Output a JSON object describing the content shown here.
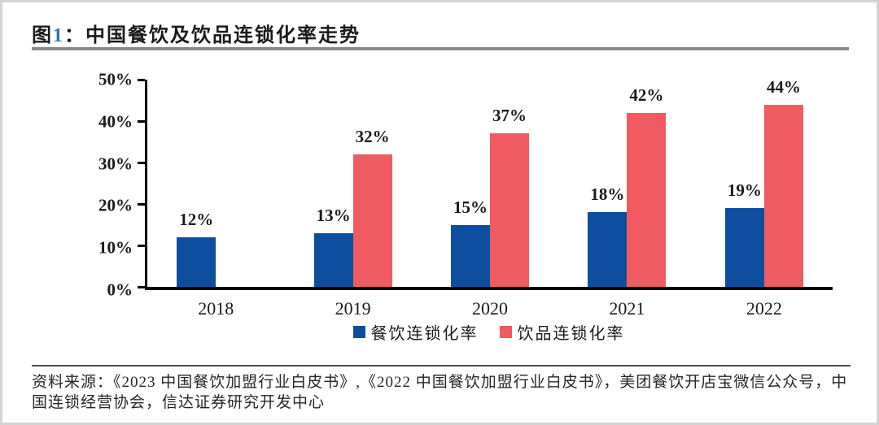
{
  "figure": {
    "fig_prefix": "图",
    "fig_number": "1",
    "fig_colon": "：",
    "title": "中国餐饮及饮品连锁化率走势"
  },
  "chart_data": {
    "type": "bar",
    "title": "中国餐饮及饮品连锁化率走势",
    "categories": [
      "2018",
      "2019",
      "2020",
      "2021",
      "2022"
    ],
    "series": [
      {
        "id": "catering",
        "name": "餐饮连锁化率",
        "color": "#0d4f9e",
        "values": [
          12,
          13,
          15,
          18,
          19
        ]
      },
      {
        "id": "beverage",
        "name": "饮品连锁化率",
        "color": "#ef5b60",
        "values": [
          null,
          32,
          37,
          42,
          44
        ]
      }
    ],
    "unit": "%",
    "ylim": [
      0,
      50
    ],
    "yticks": [
      0,
      10,
      20,
      30,
      40,
      50
    ],
    "grid": false,
    "legend_position": "bottom",
    "value_labels": true,
    "xlabel": "",
    "ylabel": ""
  },
  "source": {
    "line1": "资料来源：《2023 中国餐饮加盟行业白皮书》,《2022 中国餐饮加盟行业白皮书》，美团餐饮开店宝微信公众号，中",
    "line2": "国连锁经营协会，信达证券研究开发中心"
  }
}
